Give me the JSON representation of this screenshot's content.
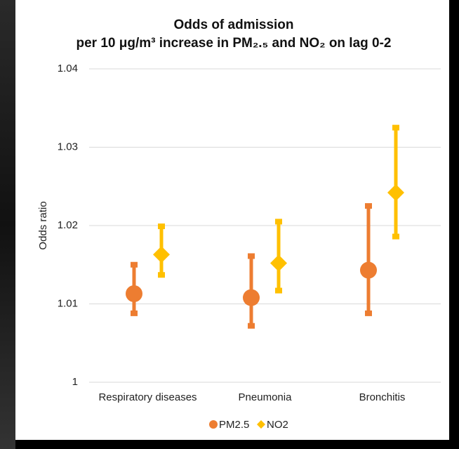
{
  "chart_data": {
    "type": "errorbar",
    "title": "Odds of admission",
    "subtitle": "per 10 μg/m³ increase in PM₂.₅ and NO₂ on lag 0-2",
    "y_label": "Odds ratio",
    "categories": [
      "Respiratory diseases",
      "Pneumonia",
      "Bronchitis"
    ],
    "series": [
      {
        "name": "PM2.5",
        "color": "#ed7d31",
        "marker": "circle",
        "values": [
          1.0113,
          1.0108,
          1.0143
        ],
        "lower": [
          1.0088,
          1.0072,
          1.0088
        ],
        "upper": [
          1.015,
          1.0161,
          1.0225
        ]
      },
      {
        "name": "NO2",
        "color": "#ffc000",
        "marker": "diamond",
        "values": [
          1.0163,
          1.0152,
          1.0242
        ],
        "lower": [
          1.0137,
          1.0117,
          1.0186
        ],
        "upper": [
          1.0199,
          1.0205,
          1.0325
        ]
      }
    ],
    "ylim": [
      1,
      1.04
    ],
    "yticks": [
      1,
      1.01,
      1.02,
      1.03,
      1.04
    ],
    "grid": true,
    "legend": "bottom"
  }
}
